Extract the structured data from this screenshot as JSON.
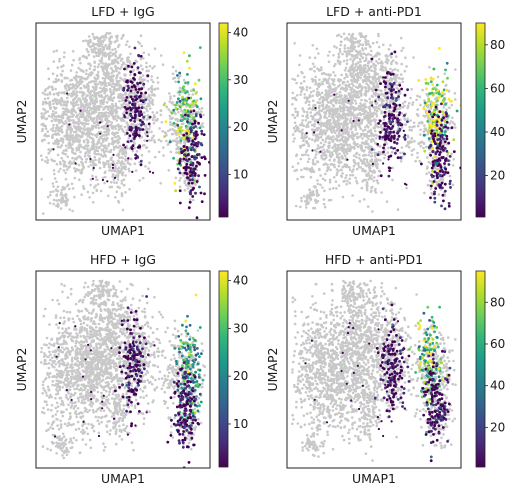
{
  "chart_data": [
    {
      "type": "scatter",
      "title": "LFD + IgG",
      "xlabel": "UMAP1",
      "ylabel": "UMAP2",
      "colorbar": {
        "colormap": "viridis",
        "range": [
          1,
          42
        ],
        "ticks": [
          10,
          20,
          30,
          40
        ]
      },
      "grid": false,
      "background_points_color": "#c8c8c8",
      "clusters": [
        {
          "name": "mid",
          "center": [
            0.57,
            0.44
          ],
          "level": 0.1
        },
        {
          "name": "right-high",
          "center": [
            0.86,
            0.5
          ],
          "level": 0.75
        },
        {
          "name": "right-low",
          "center": [
            0.9,
            0.68
          ],
          "level": 0.12
        }
      ]
    },
    {
      "type": "scatter",
      "title": "LFD + anti-PD1",
      "xlabel": "UMAP1",
      "ylabel": "UMAP2",
      "colorbar": {
        "colormap": "viridis",
        "range": [
          1,
          90
        ],
        "ticks": [
          20,
          40,
          60,
          80
        ]
      },
      "grid": false,
      "background_points_color": "#c8c8c8",
      "clusters": [
        {
          "name": "mid",
          "center": [
            0.6,
            0.48
          ],
          "level": 0.15
        },
        {
          "name": "right-high",
          "center": [
            0.86,
            0.48
          ],
          "level": 0.85
        },
        {
          "name": "right-low",
          "center": [
            0.88,
            0.68
          ],
          "level": 0.1
        }
      ]
    },
    {
      "type": "scatter",
      "title": "HFD + IgG",
      "xlabel": "UMAP1",
      "ylabel": "UMAP2",
      "colorbar": {
        "colormap": "viridis",
        "range": [
          1,
          42
        ],
        "ticks": [
          10,
          20,
          30,
          40
        ]
      },
      "grid": false,
      "background_points_color": "#c8c8c8",
      "clusters": [
        {
          "name": "mid",
          "center": [
            0.56,
            0.46
          ],
          "level": 0.1
        },
        {
          "name": "right-high",
          "center": [
            0.88,
            0.52
          ],
          "level": 0.55
        },
        {
          "name": "right-low",
          "center": [
            0.86,
            0.72
          ],
          "level": 0.12
        }
      ]
    },
    {
      "type": "scatter",
      "title": "HFD + anti-PD1",
      "xlabel": "UMAP1",
      "ylabel": "UMAP2",
      "colorbar": {
        "colormap": "viridis",
        "range": [
          1,
          95
        ],
        "ticks": [
          20,
          40,
          60,
          80
        ]
      },
      "grid": false,
      "background_points_color": "#c8c8c8",
      "clusters": [
        {
          "name": "mid",
          "center": [
            0.6,
            0.5
          ],
          "level": 0.15
        },
        {
          "name": "right-high",
          "center": [
            0.82,
            0.46
          ],
          "level": 0.65
        },
        {
          "name": "right-low",
          "center": [
            0.86,
            0.68
          ],
          "level": 0.2
        }
      ]
    }
  ]
}
